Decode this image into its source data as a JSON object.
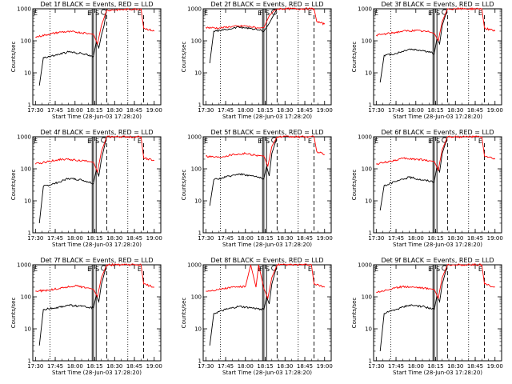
{
  "chart_data": [
    {
      "type": "line",
      "title": "Det 1f BLACK = Events, RED = LLD",
      "xlabel": "Start Time (28-Jun-03 17:28:20)",
      "ylabel": "Counts/sec",
      "yscale": "log",
      "ylim": [
        1,
        1000
      ],
      "x_ticks": [
        "17:30",
        "17:45",
        "18:00",
        "18:15",
        "18:30",
        "18:45",
        "19:00"
      ],
      "y_ticks": [
        "1",
        "10",
        "100",
        "1000"
      ],
      "markers": [
        "E",
        "F",
        "S",
        "E"
      ],
      "series": [
        {
          "color": "#000000",
          "x": [
            "17:33",
            "17:36",
            "17:45",
            "17:55",
            "18:05",
            "18:14",
            "18:16",
            "18:18",
            "18:20",
            "18:22",
            "18:24"
          ],
          "y": [
            4,
            30,
            35,
            45,
            40,
            33,
            90,
            60,
            150,
            300,
            1000
          ]
        },
        {
          "color": "#ff0000",
          "x": [
            "17:30",
            "17:40",
            "17:50",
            "18:00",
            "18:10",
            "18:14",
            "18:17",
            "18:20",
            "18:24",
            "18:50",
            "18:52",
            "19:00"
          ],
          "y": [
            130,
            160,
            190,
            190,
            170,
            160,
            80,
            300,
            900,
            1000,
            250,
            200
          ]
        }
      ]
    },
    {
      "type": "line",
      "title": "Det 2f BLACK = Events, RED = LLD",
      "xlabel": "Start Time (28-Jun-03 17:28:20)",
      "ylabel": "Counts/sec",
      "yscale": "log",
      "ylim": [
        1,
        1000
      ],
      "x_ticks": [
        "17:30",
        "17:45",
        "18:00",
        "18:15",
        "18:30",
        "18:45",
        "19:00"
      ],
      "y_ticks": [
        "1",
        "10",
        "100",
        "1000"
      ],
      "markers": [
        "E",
        "F",
        "S",
        "E"
      ],
      "series": [
        {
          "color": "#000000",
          "x": [
            "17:33",
            "17:36",
            "17:45",
            "17:55",
            "18:05",
            "18:14",
            "18:18",
            "18:20",
            "18:24"
          ],
          "y": [
            20,
            200,
            220,
            270,
            240,
            200,
            350,
            500,
            1000
          ]
        },
        {
          "color": "#ff0000",
          "x": [
            "17:30",
            "17:40",
            "17:50",
            "18:00",
            "18:10",
            "18:14",
            "18:18",
            "18:22",
            "18:25",
            "18:52",
            "18:54",
            "19:00"
          ],
          "y": [
            260,
            250,
            280,
            290,
            250,
            260,
            600,
            900,
            1000,
            1000,
            400,
            330
          ]
        }
      ]
    },
    {
      "type": "line",
      "title": "Det 3f BLACK = Events, RED = LLD",
      "xlabel": "Start Time (28-Jun-03 17:28:20)",
      "ylabel": "Counts/sec",
      "yscale": "log",
      "ylim": [
        1,
        1000
      ],
      "x_ticks": [
        "17:30",
        "17:45",
        "18:00",
        "18:15",
        "18:30",
        "18:45",
        "19:00"
      ],
      "y_ticks": [
        "1",
        "10",
        "100",
        "1000"
      ],
      "markers": [
        "E",
        "F",
        "S",
        "E"
      ],
      "series": [
        {
          "color": "#000000",
          "x": [
            "17:33",
            "17:36",
            "17:45",
            "17:55",
            "18:05",
            "18:14",
            "18:16",
            "18:18",
            "18:20",
            "18:24"
          ],
          "y": [
            5,
            35,
            40,
            55,
            50,
            40,
            120,
            80,
            300,
            1000
          ]
        },
        {
          "color": "#ff0000",
          "x": [
            "17:30",
            "17:40",
            "17:50",
            "18:00",
            "18:10",
            "18:14",
            "18:17",
            "18:20",
            "18:24",
            "18:50",
            "18:52",
            "19:00"
          ],
          "y": [
            150,
            170,
            200,
            210,
            190,
            170,
            100,
            400,
            1000,
            1000,
            250,
            200
          ]
        }
      ]
    },
    {
      "type": "line",
      "title": "Det 4f BLACK = Events, RED = LLD",
      "xlabel": "Start Time (28-Jun-03 17:28:20)",
      "ylabel": "Counts/sec",
      "yscale": "log",
      "ylim": [
        1,
        1000
      ],
      "x_ticks": [
        "17:30",
        "17:45",
        "18:00",
        "18:15",
        "18:30",
        "18:45",
        "19:00"
      ],
      "y_ticks": [
        "1",
        "10",
        "100",
        "1000"
      ],
      "markers": [
        "E",
        "F",
        "S",
        "E"
      ],
      "series": [
        {
          "color": "#000000",
          "x": [
            "17:33",
            "17:36",
            "17:45",
            "17:55",
            "18:05",
            "18:14",
            "18:16",
            "18:18",
            "18:20",
            "18:24"
          ],
          "y": [
            2,
            28,
            35,
            50,
            45,
            35,
            90,
            60,
            200,
            1000
          ]
        },
        {
          "color": "#ff0000",
          "x": [
            "17:30",
            "17:40",
            "17:50",
            "18:00",
            "18:10",
            "18:14",
            "18:17",
            "18:20",
            "18:24",
            "18:50",
            "18:52",
            "19:00"
          ],
          "y": [
            140,
            170,
            200,
            190,
            170,
            160,
            80,
            350,
            1000,
            1000,
            220,
            180
          ]
        }
      ]
    },
    {
      "type": "line",
      "title": "Det 5f BLACK = Events, RED = LLD",
      "xlabel": "Start Time (28-Jun-03 17:28:20)",
      "ylabel": "Counts/sec",
      "yscale": "log",
      "ylim": [
        1,
        1000
      ],
      "x_ticks": [
        "17:30",
        "17:45",
        "18:00",
        "18:15",
        "18:30",
        "18:45",
        "19:00"
      ],
      "y_ticks": [
        "1",
        "10",
        "100",
        "1000"
      ],
      "markers": [
        "E",
        "F",
        "S",
        "E"
      ],
      "series": [
        {
          "color": "#000000",
          "x": [
            "17:33",
            "17:36",
            "17:45",
            "17:55",
            "18:05",
            "18:14",
            "18:16",
            "18:18",
            "18:20",
            "18:24"
          ],
          "y": [
            7,
            45,
            55,
            70,
            60,
            50,
            120,
            60,
            300,
            1000
          ]
        },
        {
          "color": "#ff0000",
          "x": [
            "17:30",
            "17:40",
            "17:50",
            "18:00",
            "18:10",
            "18:14",
            "18:17",
            "18:20",
            "18:24",
            "18:52",
            "18:54",
            "19:00"
          ],
          "y": [
            250,
            230,
            280,
            300,
            260,
            250,
            120,
            500,
            1000,
            1000,
            350,
            280
          ]
        }
      ]
    },
    {
      "type": "line",
      "title": "Det 6f BLACK = Events, RED = LLD",
      "xlabel": "Start Time (28-Jun-03 17:28:20)",
      "ylabel": "Counts/sec",
      "yscale": "log",
      "ylim": [
        1,
        1000
      ],
      "x_ticks": [
        "17:30",
        "17:45",
        "18:00",
        "18:15",
        "18:30",
        "18:45",
        "19:00"
      ],
      "y_ticks": [
        "1",
        "10",
        "100",
        "1000"
      ],
      "markers": [
        "E",
        "F",
        "S",
        "E"
      ],
      "series": [
        {
          "color": "#000000",
          "x": [
            "17:33",
            "17:36",
            "17:45",
            "17:55",
            "18:05",
            "18:14",
            "18:16",
            "18:18",
            "18:20",
            "18:24"
          ],
          "y": [
            5,
            30,
            40,
            55,
            45,
            40,
            120,
            80,
            300,
            1000
          ]
        },
        {
          "color": "#ff0000",
          "x": [
            "17:30",
            "17:40",
            "17:50",
            "18:00",
            "18:10",
            "18:14",
            "18:17",
            "18:20",
            "18:24",
            "18:50",
            "18:52",
            "19:00"
          ],
          "y": [
            140,
            170,
            210,
            200,
            180,
            170,
            90,
            400,
            1000,
            1000,
            250,
            200
          ]
        }
      ]
    },
    {
      "type": "line",
      "title": "Det 7f BLACK = Events, RED = LLD",
      "xlabel": "Start Time (28-Jun-03 17:28:20)",
      "ylabel": "Counts/sec",
      "yscale": "log",
      "ylim": [
        1,
        1000
      ],
      "x_ticks": [
        "17:30",
        "17:45",
        "18:00",
        "18:15",
        "18:30",
        "18:45",
        "19:00"
      ],
      "y_ticks": [
        "1",
        "10",
        "100",
        "1000"
      ],
      "markers": [
        "E",
        "F",
        "S",
        "E"
      ],
      "series": [
        {
          "color": "#000000",
          "x": [
            "17:33",
            "17:36",
            "17:45",
            "17:55",
            "18:05",
            "18:14",
            "18:16",
            "18:18",
            "18:20",
            "18:24"
          ],
          "y": [
            3,
            40,
            45,
            55,
            50,
            45,
            110,
            70,
            250,
            1000
          ]
        },
        {
          "color": "#ff0000",
          "x": [
            "17:30",
            "17:40",
            "17:50",
            "18:00",
            "18:10",
            "18:14",
            "18:17",
            "18:20",
            "18:24",
            "18:50",
            "18:52",
            "19:00"
          ],
          "y": [
            150,
            160,
            190,
            220,
            190,
            170,
            100,
            400,
            1000,
            1000,
            250,
            200
          ]
        }
      ]
    },
    {
      "type": "line",
      "title": "Det 8f BLACK = Events, RED = LLD",
      "xlabel": "Start Time (28-Jun-03 17:28:20)",
      "ylabel": "Counts/sec",
      "yscale": "log",
      "ylim": [
        1,
        1000
      ],
      "x_ticks": [
        "17:30",
        "17:45",
        "18:00",
        "18:15",
        "18:30",
        "18:45",
        "19:00"
      ],
      "y_ticks": [
        "1",
        "10",
        "100",
        "1000"
      ],
      "markers": [
        "E",
        "F",
        "S",
        "E"
      ],
      "series": [
        {
          "color": "#000000",
          "x": [
            "17:33",
            "17:36",
            "17:45",
            "17:55",
            "18:05",
            "18:14",
            "18:16",
            "18:18",
            "18:20",
            "18:24"
          ],
          "y": [
            3,
            30,
            40,
            50,
            45,
            40,
            100,
            60,
            250,
            1000
          ]
        },
        {
          "color": "#ff0000",
          "x": [
            "17:30",
            "17:40",
            "17:50",
            "18:00",
            "18:04",
            "18:08",
            "18:10",
            "18:14",
            "18:17",
            "18:20",
            "18:24",
            "18:50",
            "18:52",
            "19:00"
          ],
          "y": [
            150,
            170,
            200,
            210,
            1000,
            200,
            1000,
            180,
            90,
            400,
            1000,
            1000,
            250,
            200
          ]
        }
      ]
    },
    {
      "type": "line",
      "title": "Det 9f BLACK = Events, RED = LLD",
      "xlabel": "Start Time (28-Jun-03 17:28:20)",
      "ylabel": "Counts/sec",
      "yscale": "log",
      "ylim": [
        1,
        1000
      ],
      "x_ticks": [
        "17:30",
        "17:45",
        "18:00",
        "18:15",
        "18:30",
        "18:45",
        "19:00"
      ],
      "y_ticks": [
        "1",
        "10",
        "100",
        "1000"
      ],
      "markers": [
        "E",
        "F",
        "S",
        "E"
      ],
      "series": [
        {
          "color": "#000000",
          "x": [
            "17:33",
            "17:36",
            "17:45",
            "17:55",
            "18:05",
            "18:14",
            "18:16",
            "18:18",
            "18:20",
            "18:24"
          ],
          "y": [
            2,
            30,
            40,
            55,
            50,
            40,
            110,
            70,
            250,
            1000
          ]
        },
        {
          "color": "#ff0000",
          "x": [
            "17:30",
            "17:40",
            "17:50",
            "18:00",
            "18:10",
            "18:14",
            "18:17",
            "18:20",
            "18:24",
            "18:50",
            "18:52",
            "19:00"
          ],
          "y": [
            140,
            170,
            210,
            200,
            180,
            170,
            90,
            400,
            1000,
            1000,
            250,
            200
          ]
        }
      ]
    }
  ]
}
